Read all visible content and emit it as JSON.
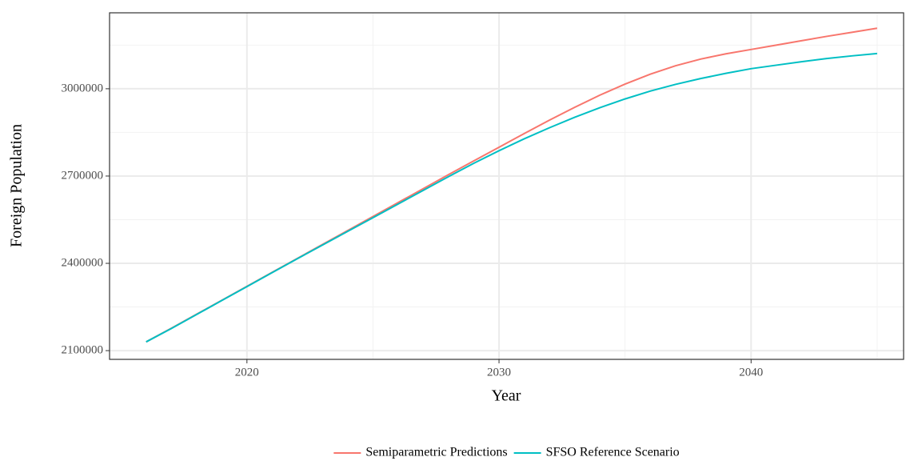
{
  "chart_data": {
    "type": "line",
    "x_label": "Year",
    "y_label": "Foreign Population",
    "x": [
      2016,
      2017,
      2018,
      2019,
      2020,
      2021,
      2022,
      2023,
      2024,
      2025,
      2026,
      2027,
      2028,
      2029,
      2030,
      2031,
      2032,
      2033,
      2034,
      2035,
      2036,
      2037,
      2038,
      2039,
      2040,
      2041,
      2042,
      2043,
      2044,
      2045
    ],
    "series": [
      {
        "name": "Semiparametric Predictions",
        "color": "#f8766d",
        "values": [
          2130000,
          2177000,
          2225000,
          2273000,
          2321000,
          2369000,
          2417000,
          2465000,
          2513000,
          2561000,
          2609000,
          2657000,
          2705000,
          2752000,
          2799000,
          2846000,
          2892000,
          2936000,
          2978000,
          3016000,
          3050000,
          3079000,
          3102000,
          3120000,
          3135000,
          3150000,
          3165000,
          3180000,
          3194000,
          3208000
        ]
      },
      {
        "name": "SFSO Reference Scenario",
        "color": "#00bfc4",
        "values": [
          2130000,
          2176000,
          2224000,
          2272000,
          2320000,
          2368000,
          2416000,
          2463000,
          2510000,
          2557000,
          2604000,
          2651000,
          2698000,
          2744000,
          2787000,
          2828000,
          2866000,
          2902000,
          2935000,
          2965000,
          2992000,
          3015000,
          3035000,
          3053000,
          3069000,
          3081000,
          3093000,
          3104000,
          3113000,
          3121000
        ]
      }
    ],
    "xlim": [
      2014.55,
      2046.05
    ],
    "ylim": [
      2070000,
      3261000
    ],
    "xticks": [
      2020,
      2030,
      2040
    ],
    "yticks": [
      2100000,
      2400000,
      2700000,
      3000000
    ],
    "x_minor_gridlines": [
      2025,
      2035,
      2045
    ],
    "y_minor_gridlines": [
      2250000,
      2550000,
      2850000,
      3150000
    ],
    "grid": true,
    "legend_position": "bottom"
  }
}
